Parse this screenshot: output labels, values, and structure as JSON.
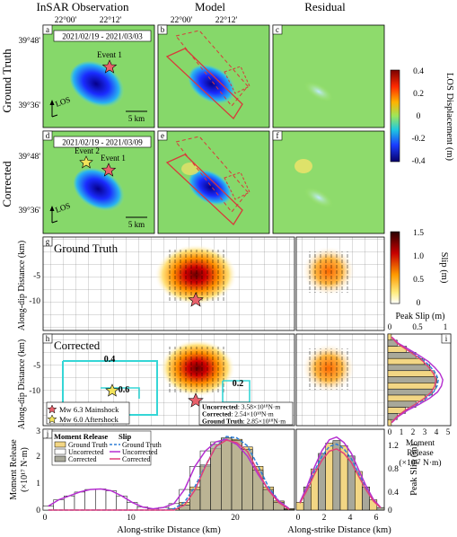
{
  "col_titles": [
    "InSAR Observation",
    "Model",
    "Residual"
  ],
  "row_titles": [
    "Ground Truth",
    "Corrected"
  ],
  "top_ticks": [
    "22°00'",
    "22°12'"
  ],
  "lat_ticks": [
    "39°48'",
    "39°36'"
  ],
  "panel_letters": [
    "a",
    "b",
    "c",
    "d",
    "e",
    "f",
    "g",
    "h",
    "i",
    "j"
  ],
  "date_a": "2021/02/19 - 2021/03/03",
  "date_d": "2021/02/19 - 2021/03/09",
  "event1": "Event 1",
  "event2": "Event 2",
  "los": "LOS",
  "scale": "5 km",
  "colorbar1": {
    "label": "LOS Displacement (m)",
    "ticks": [
      "0.4",
      "0.2",
      "0",
      "-0.2",
      "-0.4"
    ]
  },
  "colorbar2": {
    "label": "Slip (m)",
    "ticks": [
      "1.5",
      "1.0",
      "0.5",
      "0"
    ]
  },
  "g_title": "Ground Truth",
  "h_title": "Corrected",
  "ylabel_slip": "Along-dip Distance (km)",
  "ytick_slip": [
    "-5",
    "-10"
  ],
  "contour_labels": [
    "0.4",
    "0.6",
    "0.2"
  ],
  "legend_h": [
    "Mw 6.3 Mainshock",
    "Mw 6.0 Aftershock"
  ],
  "moment_box": {
    "unc_label": "Uncorrected",
    "unc_val": ": 3.58×10¹⁸N·m",
    "cor_label": "Corrected",
    "cor_val": ": 2.54×10¹⁸N·m",
    "gt_label": "Ground Truth",
    "gt_val": ": 2.85×10¹⁸N·m"
  },
  "panel_i": {
    "title": "Peak Slip (m)",
    "top_ticks": [
      "0",
      "0.5",
      "1"
    ],
    "bottom_ticks": [
      "0",
      "1",
      "2",
      "3",
      "4",
      "5"
    ],
    "xlabel": [
      "Moment",
      "Release",
      "(×10¹⁷ N·m)"
    ]
  },
  "panel_j": {
    "legend_mr_title": "Moment Release",
    "legend_slip_title": "Slip",
    "legend_mr": [
      "Ground Truth",
      "Uncorrected",
      "Corrected"
    ],
    "legend_slip": [
      "Ground Truth",
      "Uncorrected",
      "Corrected"
    ],
    "ylabel": [
      "Moment Release",
      "(×10¹⁷ N·m)"
    ],
    "yticks": [
      "0",
      "1",
      "2",
      "3"
    ],
    "xticks": [
      "0",
      "10",
      "20"
    ],
    "xlabel": "Along-strike Distance (km)",
    "right_ylabel": "Peak Slip (m)",
    "right_yticks": [
      "0",
      "0.4",
      "0.8",
      "1.2"
    ],
    "right_xticks": [
      "0",
      "2",
      "4",
      "6"
    ],
    "right_xlabel": "Along-strike Distance (km)"
  },
  "colors": {
    "gt": "#f2d684",
    "unc": "#ffffff",
    "cor": "#a8a89a",
    "gt_line": "#2f7fd6",
    "unc_line": "#b52fd0",
    "cor_line": "#e0407a",
    "cyan": "#35d6d6",
    "fault": "#d83a3a"
  },
  "chart_data": {
    "type": "bar",
    "x": [
      0,
      1,
      2,
      3,
      4,
      5,
      6,
      7,
      8,
      9,
      10,
      11,
      12,
      13,
      14,
      15,
      16,
      17,
      18,
      19,
      20,
      21,
      22,
      23
    ],
    "series": [
      {
        "name": "Ground Truth",
        "values": [
          0,
          0,
          0,
          0,
          0,
          0,
          0,
          0,
          0,
          0,
          0,
          0,
          0.05,
          0.3,
          0.9,
          1.7,
          2.4,
          2.8,
          2.75,
          2.45,
          1.7,
          0.9,
          0.35,
          0.05
        ]
      },
      {
        "name": "Uncorrected",
        "values": [
          0.15,
          0.4,
          0.55,
          0.7,
          0.8,
          0.82,
          0.75,
          0.55,
          0.3,
          0.12,
          0.05,
          0.1,
          0.25,
          0.8,
          1.7,
          2.3,
          2.65,
          2.75,
          2.55,
          2.1,
          1.4,
          0.8,
          0.35,
          0.05
        ]
      },
      {
        "name": "Corrected",
        "values": [
          0,
          0,
          0,
          0,
          0,
          0,
          0,
          0,
          0,
          0,
          0,
          0,
          0,
          0.2,
          0.8,
          1.75,
          2.55,
          2.8,
          2.7,
          2.35,
          1.55,
          0.8,
          0.3,
          0.02
        ]
      }
    ],
    "xlabel": "Along-strike Distance (km)",
    "ylabel": "Moment Release (×10¹⁷ N·m)",
    "ylim": [
      0,
      3
    ]
  }
}
